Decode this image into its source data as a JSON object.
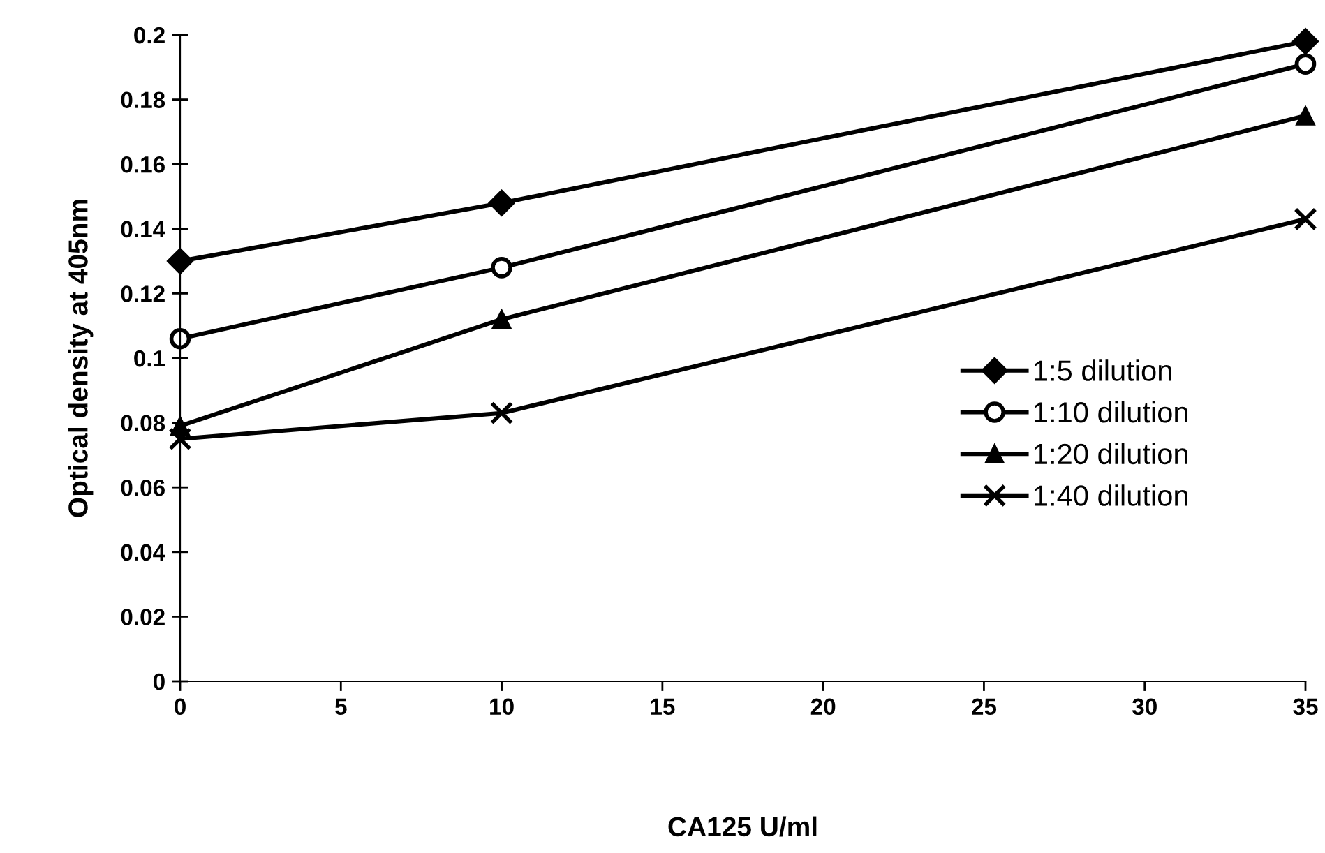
{
  "chart_data": {
    "type": "line",
    "xlabel": "CA125 U/ml",
    "ylabel": "Optical density at 405nm",
    "x": [
      0,
      10,
      35
    ],
    "series": [
      {
        "name": "1:5 dilution",
        "color": "#000000",
        "marker": "diamond",
        "values": [
          0.13,
          0.148,
          0.198
        ]
      },
      {
        "name": "1:10 dilution",
        "color": "#000000",
        "marker": "circle",
        "values": [
          0.106,
          0.128,
          0.191
        ]
      },
      {
        "name": "1:20 dilution",
        "color": "#000000",
        "marker": "triangle",
        "values": [
          0.079,
          0.112,
          0.175
        ]
      },
      {
        "name": "1:40 dilution",
        "color": "#000000",
        "marker": "cross",
        "values": [
          0.075,
          0.083,
          0.143
        ]
      }
    ],
    "xlim": [
      0,
      35
    ],
    "xticks": [
      0,
      5,
      10,
      15,
      20,
      25,
      30,
      35
    ],
    "ylim": [
      0,
      0.2
    ],
    "yticks": [
      0,
      0.02,
      0.04,
      0.06,
      0.08,
      0.1,
      0.12,
      0.14,
      0.16,
      0.18,
      0.2
    ],
    "grid": false,
    "legend": "right",
    "line_style": "solid"
  }
}
